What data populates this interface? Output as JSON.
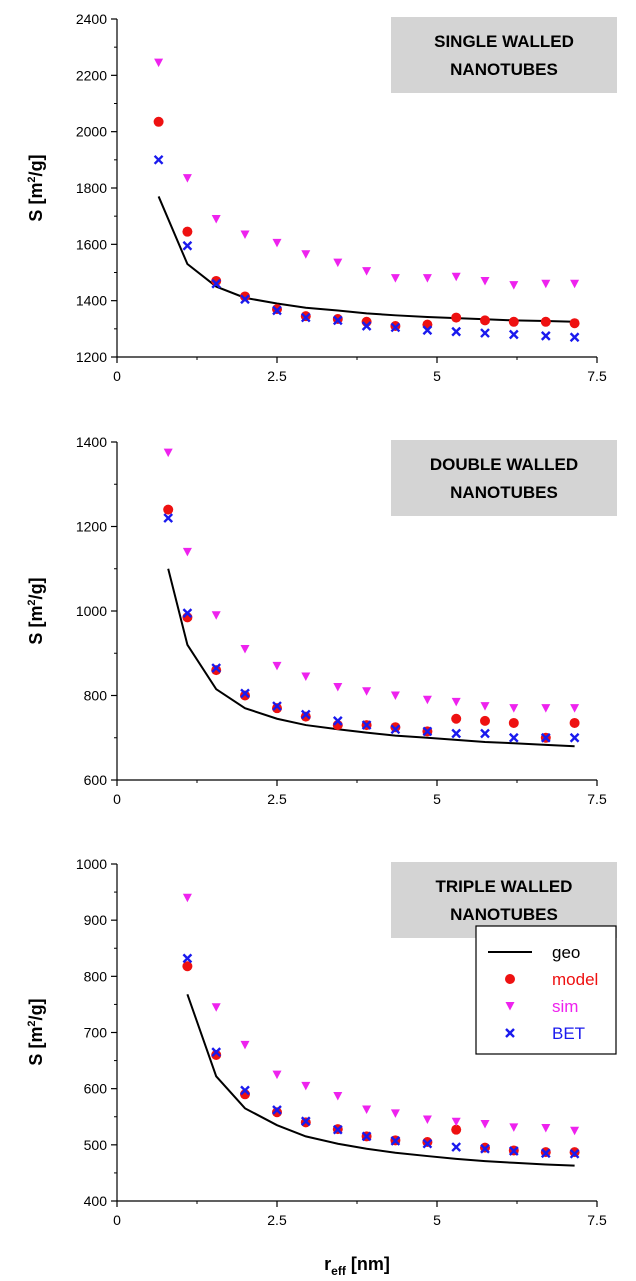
{
  "figure": {
    "xlabel_main": "r",
    "xlabel_sub": "eff",
    "xlabel_unit": " [nm]"
  },
  "legend": {
    "placement": "inside-right of bottom panel",
    "entries": [
      {
        "key": "geo",
        "label": "geo"
      },
      {
        "key": "model",
        "label": "model"
      },
      {
        "key": "sim",
        "label": "sim"
      },
      {
        "key": "BET",
        "label": "BET"
      }
    ]
  },
  "styles": {
    "geo": {
      "color": "#000000",
      "marker": "line"
    },
    "model": {
      "color": "#ee1111",
      "marker": "circle"
    },
    "sim": {
      "color": "#ee22ee",
      "marker": "triangle-down"
    },
    "BET": {
      "color": "#1a1aee",
      "marker": "x"
    },
    "box_fill": "#d4d4d4"
  },
  "chart_data": [
    {
      "type": "scatter",
      "title_lines": [
        "SINGLE WALLED",
        "NANOTUBES"
      ],
      "ylabel_main": "S [m",
      "ylabel_sup": "2",
      "ylabel_unit": "/g]",
      "xlim": [
        0,
        7.5
      ],
      "ylim": [
        1200,
        2400
      ],
      "xticks": [
        0,
        2.5,
        5,
        7.5
      ],
      "xtick_labels": [
        "0",
        "2.5",
        "5",
        "7.5"
      ],
      "yticks": [
        1200,
        1400,
        1600,
        1800,
        2000,
        2200,
        2400
      ],
      "ytick_labels": [
        "1200",
        "1400",
        "1600",
        "1800",
        "2000",
        "2200",
        "2400"
      ],
      "grid": false,
      "series": [
        {
          "key": "geo",
          "x": [
            0.65,
            1.1,
            1.55,
            2.0,
            2.5,
            2.95,
            3.45,
            3.9,
            4.35,
            4.85,
            5.3,
            5.75,
            6.2,
            6.7,
            7.15
          ],
          "y": [
            1770,
            1530,
            1450,
            1410,
            1390,
            1375,
            1365,
            1355,
            1348,
            1342,
            1338,
            1334,
            1330,
            1328,
            1325
          ]
        },
        {
          "key": "model",
          "x": [
            0.65,
            1.1,
            1.55,
            2.0,
            2.5,
            2.95,
            3.45,
            3.9,
            4.35,
            4.85,
            5.3,
            5.75,
            6.2,
            6.7,
            7.15
          ],
          "y": [
            2035,
            1645,
            1470,
            1415,
            1370,
            1345,
            1335,
            1325,
            1310,
            1315,
            1340,
            1330,
            1325,
            1325,
            1320
          ]
        },
        {
          "key": "sim",
          "x": [
            0.65,
            1.1,
            1.55,
            2.0,
            2.5,
            2.95,
            3.45,
            3.9,
            4.35,
            4.85,
            5.3,
            5.75,
            6.2,
            6.7,
            7.15
          ],
          "y": [
            2245,
            1835,
            1690,
            1635,
            1605,
            1565,
            1535,
            1505,
            1480,
            1480,
            1485,
            1470,
            1455,
            1460,
            1460
          ]
        },
        {
          "key": "BET",
          "x": [
            0.65,
            1.1,
            1.55,
            2.0,
            2.5,
            2.95,
            3.45,
            3.9,
            4.35,
            4.85,
            5.3,
            5.75,
            6.2,
            6.7,
            7.15
          ],
          "y": [
            1900,
            1595,
            1460,
            1405,
            1365,
            1340,
            1330,
            1310,
            1305,
            1295,
            1290,
            1285,
            1280,
            1275,
            1270
          ]
        }
      ]
    },
    {
      "type": "scatter",
      "title_lines": [
        "DOUBLE WALLED",
        "NANOTUBES"
      ],
      "ylabel_main": "S [m",
      "ylabel_sup": "2",
      "ylabel_unit": "/g]",
      "xlim": [
        0,
        7.5
      ],
      "ylim": [
        600,
        1400
      ],
      "xticks": [
        0,
        2.5,
        5,
        7.5
      ],
      "xtick_labels": [
        "0",
        "2.5",
        "5",
        "7.5"
      ],
      "yticks": [
        600,
        800,
        1000,
        1200,
        1400
      ],
      "ytick_labels": [
        "600",
        "800",
        "1000",
        "1200",
        "1400"
      ],
      "grid": false,
      "series": [
        {
          "key": "geo",
          "x": [
            0.8,
            1.1,
            1.55,
            2.0,
            2.5,
            2.95,
            3.45,
            3.9,
            4.35,
            4.85,
            5.3,
            5.75,
            6.2,
            6.7,
            7.15
          ],
          "y": [
            1100,
            920,
            815,
            770,
            745,
            730,
            720,
            712,
            705,
            700,
            695,
            690,
            687,
            683,
            680
          ]
        },
        {
          "key": "model",
          "x": [
            0.8,
            1.1,
            1.55,
            2.0,
            2.5,
            2.95,
            3.45,
            3.9,
            4.35,
            4.85,
            5.3,
            5.75,
            6.2,
            6.7,
            7.15
          ],
          "y": [
            1240,
            985,
            860,
            800,
            770,
            750,
            730,
            730,
            725,
            715,
            745,
            740,
            735,
            700,
            735
          ]
        },
        {
          "key": "sim",
          "x": [
            0.8,
            1.1,
            1.55,
            2.0,
            2.5,
            2.95,
            3.45,
            3.9,
            4.35,
            4.85,
            5.3,
            5.75,
            6.2,
            6.7,
            7.15
          ],
          "y": [
            1375,
            1140,
            990,
            910,
            870,
            845,
            820,
            810,
            800,
            790,
            785,
            775,
            770,
            770,
            770
          ]
        },
        {
          "key": "BET",
          "x": [
            0.8,
            1.1,
            1.55,
            2.0,
            2.5,
            2.95,
            3.45,
            3.9,
            4.35,
            4.85,
            5.3,
            5.75,
            6.2,
            6.7,
            7.15
          ],
          "y": [
            1220,
            995,
            865,
            805,
            775,
            755,
            740,
            730,
            720,
            715,
            710,
            710,
            700,
            700,
            700
          ]
        }
      ]
    },
    {
      "type": "scatter",
      "title_lines": [
        "TRIPLE WALLED",
        "NANOTUBES"
      ],
      "ylabel_main": "S [m",
      "ylabel_sup": "2",
      "ylabel_unit": "/g]",
      "xlim": [
        0,
        7.5
      ],
      "ylim": [
        400,
        1000
      ],
      "xticks": [
        0,
        2.5,
        5,
        7.5
      ],
      "xtick_labels": [
        "0",
        "2.5",
        "5",
        "7.5"
      ],
      "yticks": [
        400,
        500,
        600,
        700,
        800,
        900,
        1000
      ],
      "ytick_labels": [
        "400",
        "500",
        "600",
        "700",
        "800",
        "900",
        "1000"
      ],
      "grid": false,
      "series": [
        {
          "key": "geo",
          "x": [
            1.1,
            1.55,
            2.0,
            2.5,
            2.95,
            3.45,
            3.9,
            4.35,
            4.85,
            5.3,
            5.75,
            6.2,
            6.7,
            7.15
          ],
          "y": [
            768,
            622,
            565,
            535,
            515,
            502,
            493,
            486,
            480,
            475,
            471,
            468,
            465,
            463
          ]
        },
        {
          "key": "model",
          "x": [
            1.1,
            1.55,
            2.0,
            2.5,
            2.95,
            3.45,
            3.9,
            4.35,
            4.85,
            5.3,
            5.75,
            6.2,
            6.7,
            7.15
          ],
          "y": [
            818,
            660,
            590,
            558,
            540,
            528,
            515,
            508,
            505,
            527,
            495,
            490,
            487,
            487
          ]
        },
        {
          "key": "sim",
          "x": [
            1.1,
            1.55,
            2.0,
            2.5,
            2.95,
            3.45,
            3.9,
            4.35,
            4.85,
            5.3,
            5.75,
            6.2,
            6.7,
            7.15
          ],
          "y": [
            940,
            745,
            678,
            625,
            605,
            587,
            563,
            556,
            545,
            541,
            537,
            531,
            530,
            525
          ]
        },
        {
          "key": "BET",
          "x": [
            1.1,
            1.55,
            2.0,
            2.5,
            2.95,
            3.45,
            3.9,
            4.35,
            4.85,
            5.3,
            5.75,
            6.2,
            6.7,
            7.15
          ],
          "y": [
            832,
            665,
            597,
            562,
            542,
            527,
            515,
            507,
            502,
            496,
            493,
            489,
            485,
            484
          ]
        }
      ]
    }
  ]
}
